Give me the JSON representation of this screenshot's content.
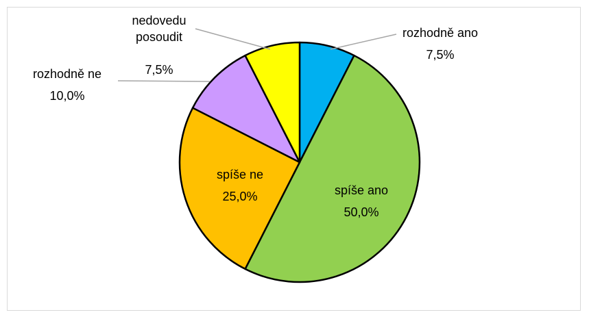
{
  "chart_data": {
    "type": "pie",
    "categories": [
      "rozhodně ano",
      "spíše ano",
      "spíše ne",
      "rozhodně ne",
      "nedovedu posoudit"
    ],
    "values": [
      7.5,
      50,
      25,
      10,
      7.5
    ],
    "value_labels": [
      "7,5%",
      "50,0%",
      "25,0%",
      "10,0%",
      "7,5%"
    ],
    "colors": [
      "#00b0f0",
      "#92d050",
      "#ffc000",
      "#cc99ff",
      "#ffff00"
    ]
  }
}
